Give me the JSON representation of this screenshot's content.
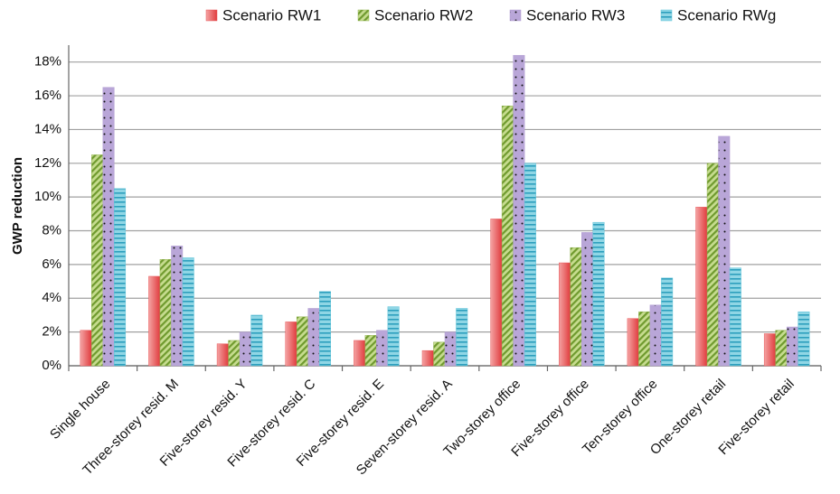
{
  "chart_data": {
    "type": "bar",
    "y_label": "GWP reduction",
    "categories": [
      "Single house",
      "Three-storey resid. M",
      "Five-storey resid. Y",
      "Five-storey resid. C",
      "Five-storey resid. E",
      "Seven-storey resid. A",
      "Two-storey office",
      "Five-storey office",
      "Ten-storey office",
      "One-storey retail",
      "Five-storey retail"
    ],
    "series": [
      {
        "name": "Scenario RW1",
        "color": "#e8585a",
        "values": [
          2.1,
          5.3,
          1.3,
          2.6,
          1.5,
          0.9,
          8.7,
          6.1,
          2.8,
          9.4,
          1.9
        ]
      },
      {
        "name": "Scenario RW2",
        "color": "#8db04a",
        "values": [
          12.5,
          6.3,
          1.5,
          2.9,
          1.8,
          1.4,
          15.4,
          7.0,
          3.2,
          12.0,
          2.1
        ]
      },
      {
        "name": "Scenario RW3",
        "color": "#b39fd3",
        "values": [
          16.5,
          7.1,
          2.0,
          3.4,
          2.1,
          2.0,
          18.4,
          7.9,
          3.6,
          13.6,
          2.3
        ]
      },
      {
        "name": "Scenario RWg",
        "color": "#5ec3d8",
        "values": [
          10.5,
          6.4,
          3.0,
          4.4,
          3.5,
          3.4,
          12.0,
          8.5,
          5.2,
          5.8,
          3.2
        ]
      }
    ],
    "ylim": [
      0,
      19
    ],
    "yticks": [
      {
        "value": 0,
        "label": "0%"
      },
      {
        "value": 2,
        "label": "2%"
      },
      {
        "value": 4,
        "label": "4%"
      },
      {
        "value": 6,
        "label": "6%"
      },
      {
        "value": 8,
        "label": "8%"
      },
      {
        "value": 10,
        "label": "10%"
      },
      {
        "value": 12,
        "label": "12%"
      },
      {
        "value": 14,
        "label": "14%"
      },
      {
        "value": 16,
        "label": "16%"
      },
      {
        "value": 18,
        "label": "18%"
      }
    ],
    "grid": true
  }
}
